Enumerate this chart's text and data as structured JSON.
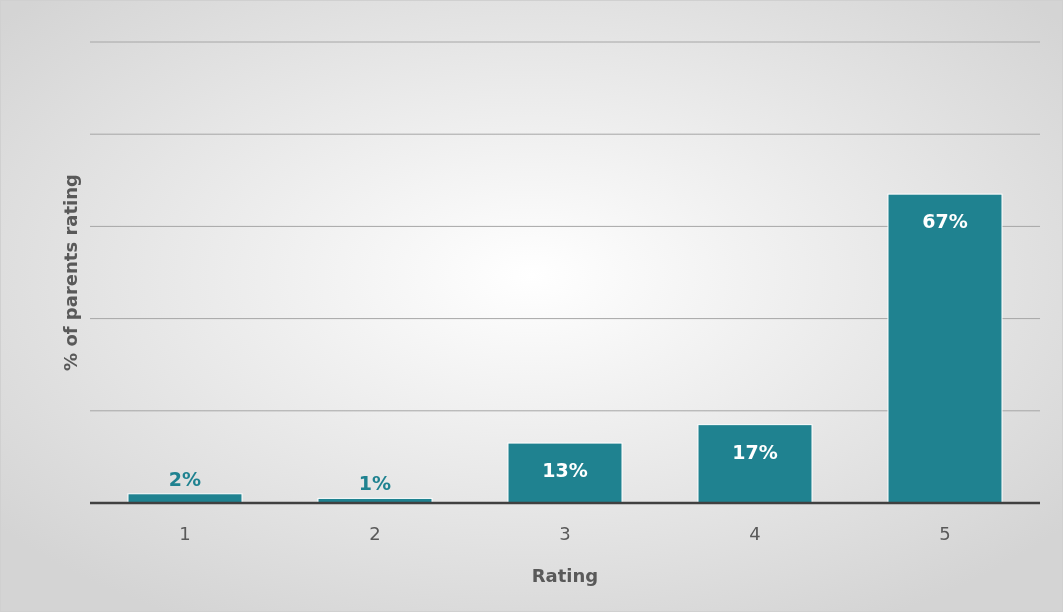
{
  "chart_data": {
    "type": "bar",
    "xlabel": "Rating",
    "ylabel": "% of parents rating",
    "categories": [
      "1",
      "2",
      "3",
      "4",
      "5"
    ],
    "values": [
      2,
      1,
      13,
      17,
      67
    ],
    "value_labels": [
      "2%",
      "1%",
      "13%",
      "17%",
      "67%"
    ],
    "color": "#1f8290",
    "ylim": [
      0,
      100
    ],
    "yticks": [
      {
        "value": 0,
        "label": null
      },
      {
        "value": 20,
        "label": null
      },
      {
        "value": 40,
        "label": null
      },
      {
        "value": 60,
        "label": null
      },
      {
        "value": 80,
        "label": null
      },
      {
        "value": 100,
        "label": null
      }
    ],
    "tick_labels": "x",
    "grid": "y"
  }
}
